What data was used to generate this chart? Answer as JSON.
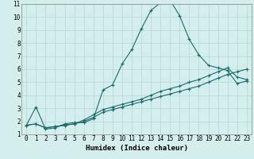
{
  "title": "",
  "xlabel": "Humidex (Indice chaleur)",
  "xlim": [
    -0.5,
    23.5
  ],
  "ylim": [
    1,
    11
  ],
  "xticks": [
    0,
    1,
    2,
    3,
    4,
    5,
    6,
    7,
    8,
    9,
    10,
    11,
    12,
    13,
    14,
    15,
    16,
    17,
    18,
    19,
    20,
    21,
    22,
    23
  ],
  "yticks": [
    1,
    2,
    3,
    4,
    5,
    6,
    7,
    8,
    9,
    10,
    11
  ],
  "bg_color": "#d4eeed",
  "grid_color": "#aed8d6",
  "line_color": "#1a6b6b",
  "line1_x": [
    0,
    1,
    2,
    3,
    4,
    5,
    6,
    7,
    8,
    9,
    10,
    11,
    12,
    13,
    14,
    15,
    16,
    17,
    18,
    19,
    20,
    21,
    22,
    23
  ],
  "line1_y": [
    1.7,
    3.1,
    1.4,
    1.5,
    1.8,
    1.9,
    1.9,
    2.2,
    4.4,
    4.8,
    6.4,
    7.5,
    9.1,
    10.5,
    11.1,
    11.3,
    10.1,
    8.3,
    7.1,
    6.3,
    6.1,
    5.9,
    4.9,
    5.1
  ],
  "line2_x": [
    0,
    1,
    2,
    3,
    4,
    5,
    6,
    7,
    8,
    9,
    10,
    11,
    12,
    13,
    14,
    15,
    16,
    17,
    18,
    19,
    20,
    21,
    22,
    23
  ],
  "line2_y": [
    1.7,
    1.8,
    1.5,
    1.6,
    1.7,
    1.8,
    2.1,
    2.5,
    2.9,
    3.1,
    3.3,
    3.5,
    3.7,
    4.0,
    4.3,
    4.5,
    4.7,
    5.0,
    5.2,
    5.5,
    5.8,
    6.1,
    5.4,
    5.2
  ],
  "line3_x": [
    0,
    1,
    2,
    3,
    4,
    5,
    6,
    7,
    8,
    9,
    10,
    11,
    12,
    13,
    14,
    15,
    16,
    17,
    18,
    19,
    20,
    21,
    22,
    23
  ],
  "line3_y": [
    1.7,
    1.8,
    1.5,
    1.6,
    1.7,
    1.8,
    2.0,
    2.3,
    2.7,
    2.9,
    3.1,
    3.3,
    3.5,
    3.7,
    3.9,
    4.1,
    4.3,
    4.5,
    4.7,
    5.0,
    5.3,
    5.6,
    5.8,
    6.0
  ],
  "label_fontsize": 5.5,
  "xlabel_fontsize": 6.5
}
